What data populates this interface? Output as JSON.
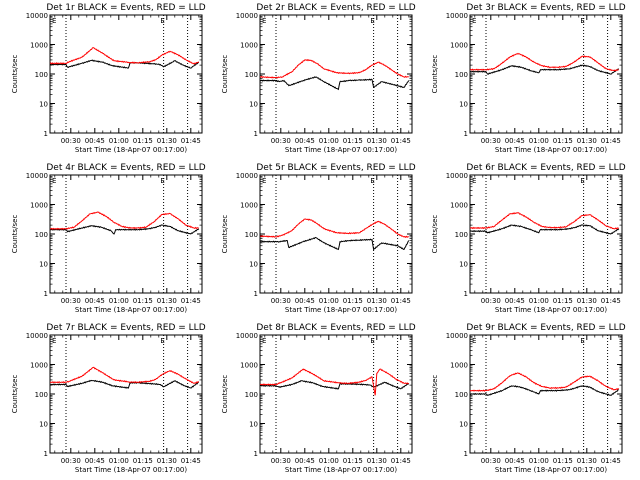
{
  "style": {
    "events_color": "#000000",
    "lld_color": "#ff0000",
    "background": "#ffffff"
  },
  "time_ticks": [
    "00:30",
    "00:45",
    "01:00",
    "01:15",
    "01:30",
    "01:45"
  ],
  "y_ticks": [
    "1",
    "10",
    "100",
    "1000",
    "10000"
  ],
  "xlabel": "Start Time (18-Apr-07 00:17:00)",
  "ylabel": "Counts/sec",
  "chart_data": [
    {
      "type": "line",
      "title": "Det 1r BLACK = Events, RED = LLD",
      "xlim_min": [
        0,
        95
      ],
      "ylim": [
        1,
        10000
      ],
      "yscale": "log",
      "vlines_min": [
        10,
        71,
        86
      ],
      "marker": "E",
      "marker_min": 69,
      "series": [
        {
          "name": "Events",
          "color": "#000000",
          "x_min": [
            0,
            10,
            11,
            20,
            26,
            33,
            39,
            49,
            50,
            55,
            65,
            69,
            71,
            78,
            84,
            88,
            93
          ],
          "values": [
            210,
            210,
            170,
            230,
            290,
            250,
            190,
            160,
            240,
            240,
            220,
            210,
            175,
            280,
            190,
            160,
            250
          ]
        },
        {
          "name": "LLD",
          "color": "#ff0000",
          "x_min": [
            0,
            10,
            12,
            20,
            27,
            33,
            40,
            49,
            50,
            55,
            62,
            66,
            70,
            75,
            80,
            85,
            90,
            93
          ],
          "values": [
            230,
            230,
            260,
            370,
            780,
            500,
            280,
            250,
            245,
            240,
            260,
            300,
            440,
            590,
            450,
            300,
            220,
            260
          ]
        }
      ]
    },
    {
      "type": "line",
      "title": "Det 2r BLACK = Events, RED = LLD",
      "xlim_min": [
        0,
        95
      ],
      "ylim": [
        1,
        10000
      ],
      "yscale": "log",
      "vlines_min": [
        10,
        71,
        86
      ],
      "marker": "E",
      "marker_min": 69,
      "series": [
        {
          "name": "Events",
          "color": "#000000",
          "x_min": [
            0,
            10,
            12,
            15,
            18,
            27,
            35,
            40,
            49,
            50,
            56,
            62,
            70,
            71,
            76,
            86,
            90,
            93
          ],
          "values": [
            60,
            60,
            55,
            60,
            40,
            60,
            80,
            55,
            30,
            55,
            60,
            62,
            65,
            35,
            55,
            40,
            35,
            60
          ]
        },
        {
          "name": "LLD",
          "color": "#ff0000",
          "x_min": [
            0,
            10,
            14,
            20,
            24,
            28,
            32,
            36,
            40,
            48,
            55,
            62,
            66,
            70,
            74,
            78,
            82,
            86,
            90,
            93
          ],
          "values": [
            80,
            75,
            80,
            120,
            200,
            300,
            290,
            220,
            150,
            110,
            105,
            110,
            140,
            200,
            250,
            200,
            140,
            100,
            80,
            80
          ]
        }
      ]
    },
    {
      "type": "line",
      "title": "Det 3r BLACK = Events, RED = LLD",
      "xlim_min": [
        0,
        95
      ],
      "ylim": [
        1,
        10000
      ],
      "yscale": "log",
      "vlines_min": [
        10,
        71,
        86
      ],
      "marker": "E",
      "marker_min": 69,
      "series": [
        {
          "name": "Events",
          "color": "#000000",
          "x_min": [
            0,
            10,
            11,
            20,
            26,
            32,
            38,
            43,
            44,
            55,
            62,
            66,
            70,
            75,
            80,
            88,
            93
          ],
          "values": [
            120,
            120,
            100,
            140,
            190,
            170,
            130,
            110,
            140,
            140,
            150,
            170,
            200,
            180,
            130,
            100,
            150
          ]
        },
        {
          "name": "LLD",
          "color": "#ff0000",
          "x_min": [
            0,
            10,
            15,
            20,
            25,
            30,
            35,
            40,
            45,
            50,
            55,
            60,
            65,
            70,
            75,
            80,
            85,
            90,
            93
          ],
          "values": [
            140,
            140,
            150,
            230,
            380,
            500,
            380,
            250,
            190,
            170,
            170,
            180,
            250,
            400,
            380,
            240,
            150,
            130,
            140
          ]
        }
      ]
    },
    {
      "type": "line",
      "title": "Det 4r BLACK = Events, RED = LLD",
      "xlim_min": [
        0,
        95
      ],
      "ylim": [
        1,
        10000
      ],
      "yscale": "log",
      "vlines_min": [
        10,
        71,
        86
      ],
      "marker": "E",
      "marker_min": 69,
      "series": [
        {
          "name": "Events",
          "color": "#000000",
          "x_min": [
            0,
            10,
            11,
            20,
            26,
            32,
            38,
            40,
            41,
            55,
            62,
            66,
            70,
            75,
            80,
            88,
            93
          ],
          "values": [
            140,
            140,
            120,
            160,
            190,
            170,
            130,
            100,
            140,
            140,
            150,
            170,
            200,
            180,
            130,
            100,
            150
          ]
        },
        {
          "name": "LLD",
          "color": "#ff0000",
          "x_min": [
            0,
            10,
            15,
            20,
            25,
            30,
            35,
            40,
            45,
            50,
            55,
            60,
            65,
            70,
            75,
            80,
            85,
            90,
            93
          ],
          "values": [
            150,
            150,
            170,
            280,
            480,
            550,
            400,
            250,
            180,
            160,
            160,
            170,
            260,
            460,
            490,
            330,
            200,
            160,
            160
          ]
        }
      ]
    },
    {
      "type": "line",
      "title": "Det 5r BLACK = Events, RED = LLD",
      "xlim_min": [
        0,
        95
      ],
      "ylim": [
        1,
        10000
      ],
      "yscale": "log",
      "vlines_min": [
        10,
        71,
        86
      ],
      "marker": "E",
      "marker_min": 69,
      "series": [
        {
          "name": "Events",
          "color": "#000000",
          "x_min": [
            0,
            10,
            12,
            17,
            18,
            27,
            35,
            40,
            49,
            50,
            56,
            62,
            70,
            71,
            76,
            86,
            90,
            93
          ],
          "values": [
            55,
            55,
            55,
            60,
            35,
            55,
            75,
            50,
            30,
            55,
            60,
            62,
            65,
            30,
            50,
            40,
            30,
            60
          ]
        },
        {
          "name": "LLD",
          "color": "#ff0000",
          "x_min": [
            0,
            10,
            14,
            20,
            24,
            28,
            32,
            36,
            40,
            48,
            55,
            62,
            66,
            70,
            74,
            78,
            82,
            86,
            90,
            93
          ],
          "values": [
            85,
            80,
            90,
            130,
            220,
            320,
            300,
            220,
            150,
            110,
            105,
            110,
            150,
            210,
            270,
            210,
            150,
            100,
            80,
            80
          ]
        }
      ]
    },
    {
      "type": "line",
      "title": "Det 6r BLACK = Events, RED = LLD",
      "xlim_min": [
        0,
        95
      ],
      "ylim": [
        1,
        10000
      ],
      "yscale": "log",
      "vlines_min": [
        10,
        71,
        86
      ],
      "marker": "E",
      "marker_min": 69,
      "series": [
        {
          "name": "Events",
          "color": "#000000",
          "x_min": [
            0,
            10,
            11,
            20,
            26,
            32,
            38,
            43,
            44,
            55,
            62,
            66,
            70,
            75,
            80,
            88,
            93
          ],
          "values": [
            125,
            125,
            110,
            150,
            200,
            180,
            140,
            110,
            140,
            140,
            150,
            170,
            200,
            190,
            130,
            100,
            150
          ]
        },
        {
          "name": "LLD",
          "color": "#ff0000",
          "x_min": [
            0,
            10,
            15,
            20,
            25,
            30,
            35,
            40,
            45,
            50,
            55,
            60,
            65,
            70,
            75,
            80,
            85,
            90,
            93
          ],
          "values": [
            160,
            160,
            180,
            300,
            480,
            520,
            380,
            250,
            180,
            165,
            165,
            175,
            260,
            420,
            450,
            300,
            190,
            150,
            160
          ]
        }
      ]
    },
    {
      "type": "line",
      "title": "Det 7r BLACK = Events, RED = LLD",
      "xlim_min": [
        0,
        95
      ],
      "ylim": [
        1,
        10000
      ],
      "yscale": "log",
      "vlines_min": [
        10,
        71,
        86
      ],
      "marker": "E",
      "marker_min": 69,
      "series": [
        {
          "name": "Events",
          "color": "#000000",
          "x_min": [
            0,
            10,
            11,
            20,
            26,
            33,
            39,
            49,
            50,
            55,
            65,
            69,
            71,
            78,
            84,
            88,
            93
          ],
          "values": [
            210,
            210,
            180,
            230,
            290,
            250,
            190,
            160,
            240,
            240,
            220,
            210,
            175,
            280,
            190,
            160,
            250
          ]
        },
        {
          "name": "LLD",
          "color": "#ff0000",
          "x_min": [
            0,
            10,
            12,
            20,
            27,
            33,
            40,
            49,
            50,
            55,
            62,
            66,
            70,
            75,
            80,
            85,
            90,
            93
          ],
          "values": [
            250,
            250,
            270,
            400,
            800,
            520,
            300,
            260,
            255,
            250,
            270,
            310,
            460,
            620,
            470,
            320,
            230,
            260
          ]
        }
      ]
    },
    {
      "type": "line",
      "title": "Det 8r BLACK = Events, RED = LLD",
      "xlim_min": [
        0,
        95
      ],
      "ylim": [
        1,
        10000
      ],
      "yscale": "log",
      "vlines_min": [
        10,
        71,
        86
      ],
      "marker": "E",
      "marker_min": 69,
      "series": [
        {
          "name": "Events",
          "color": "#000000",
          "x_min": [
            0,
            10,
            12,
            20,
            26,
            33,
            39,
            49,
            50,
            55,
            65,
            69,
            71,
            78,
            84,
            88,
            93
          ],
          "values": [
            190,
            190,
            170,
            210,
            280,
            240,
            180,
            150,
            220,
            220,
            210,
            200,
            170,
            250,
            180,
            150,
            230
          ]
        },
        {
          "name": "LLD",
          "color": "#ff0000",
          "x_min": [
            0,
            10,
            12,
            20,
            27,
            33,
            40,
            49,
            50,
            55,
            62,
            66,
            70,
            72,
            73,
            75,
            80,
            85,
            90,
            93
          ],
          "values": [
            210,
            210,
            230,
            350,
            700,
            480,
            280,
            240,
            235,
            230,
            250,
            290,
            380,
            90,
            500,
            700,
            500,
            320,
            230,
            230
          ]
        }
      ]
    },
    {
      "type": "line",
      "title": "Det 9r BLACK = Events, RED = LLD",
      "xlim_min": [
        0,
        95
      ],
      "ylim": [
        1,
        10000
      ],
      "yscale": "log",
      "vlines_min": [
        10,
        71,
        86
      ],
      "marker": "E",
      "marker_min": 69,
      "series": [
        {
          "name": "Events",
          "color": "#000000",
          "x_min": [
            0,
            10,
            11,
            20,
            26,
            32,
            38,
            43,
            44,
            55,
            62,
            66,
            70,
            75,
            80,
            88,
            93
          ],
          "values": [
            100,
            100,
            90,
            130,
            190,
            170,
            130,
            100,
            130,
            130,
            140,
            160,
            190,
            170,
            120,
            90,
            140
          ]
        },
        {
          "name": "LLD",
          "color": "#ff0000",
          "x_min": [
            0,
            10,
            15,
            20,
            25,
            30,
            35,
            40,
            45,
            50,
            55,
            60,
            65,
            70,
            75,
            80,
            85,
            90,
            93
          ],
          "values": [
            130,
            130,
            150,
            240,
            420,
            520,
            380,
            240,
            180,
            160,
            160,
            170,
            250,
            380,
            400,
            280,
            180,
            140,
            150
          ]
        }
      ]
    }
  ]
}
